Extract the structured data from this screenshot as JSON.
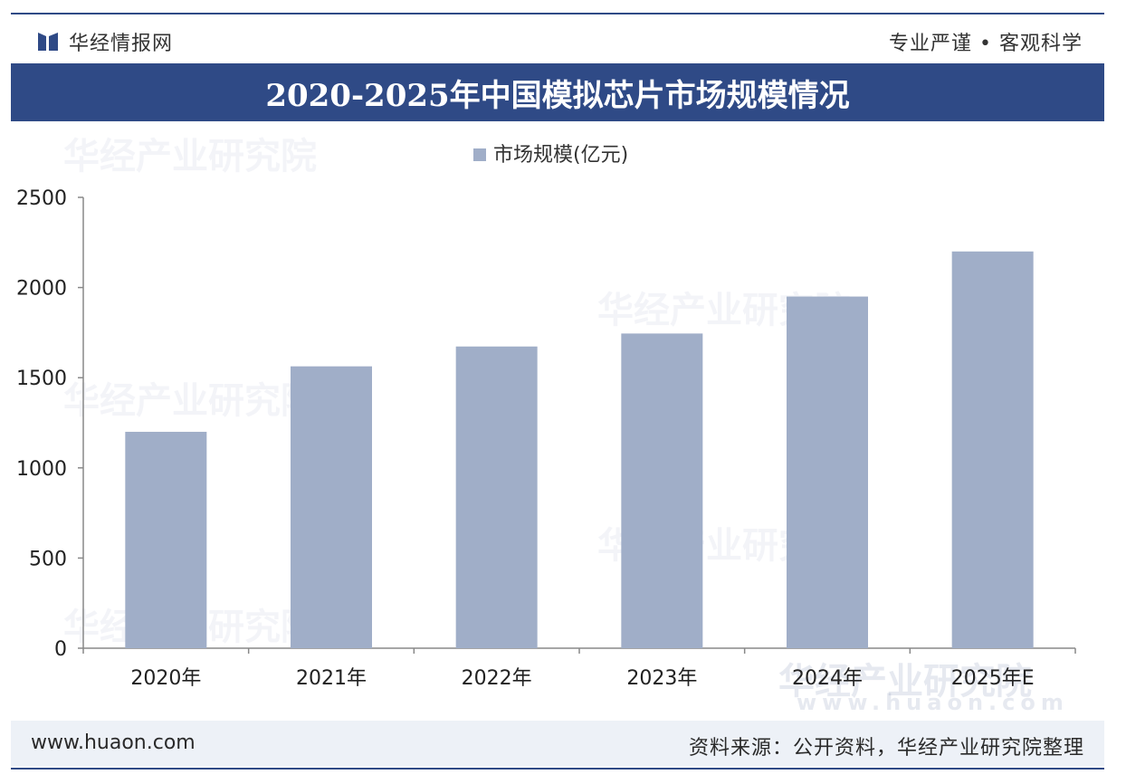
{
  "header": {
    "brand": "华经情报网",
    "motto": "专业严谨 • 客观科学",
    "title": "2020-2025年中国模拟芯片市场规模情况"
  },
  "footer": {
    "url": "www.huaon.com",
    "source": "资料来源：公开资料，华经产业研究院整理"
  },
  "watermark": {
    "text": "华经产业研究院",
    "url": "www.huaon.com"
  },
  "colors": {
    "title_bar": "#2f4a86",
    "bar": "#a0aec8",
    "axis": "#888888"
  },
  "chart_data": {
    "type": "bar",
    "legend": "市场规模(亿元)",
    "legend_position": "top-center",
    "categories": [
      "2020年",
      "2021年",
      "2022年",
      "2023年",
      "2024年",
      "2025年E"
    ],
    "series": [
      {
        "name": "市场规模(亿元)",
        "values": [
          1200,
          1563,
          1673,
          1745,
          1950,
          2200
        ]
      }
    ],
    "ylim": [
      0,
      2500
    ],
    "yticks": [
      0,
      500,
      1000,
      1500,
      2000,
      2500
    ],
    "grid": false
  }
}
